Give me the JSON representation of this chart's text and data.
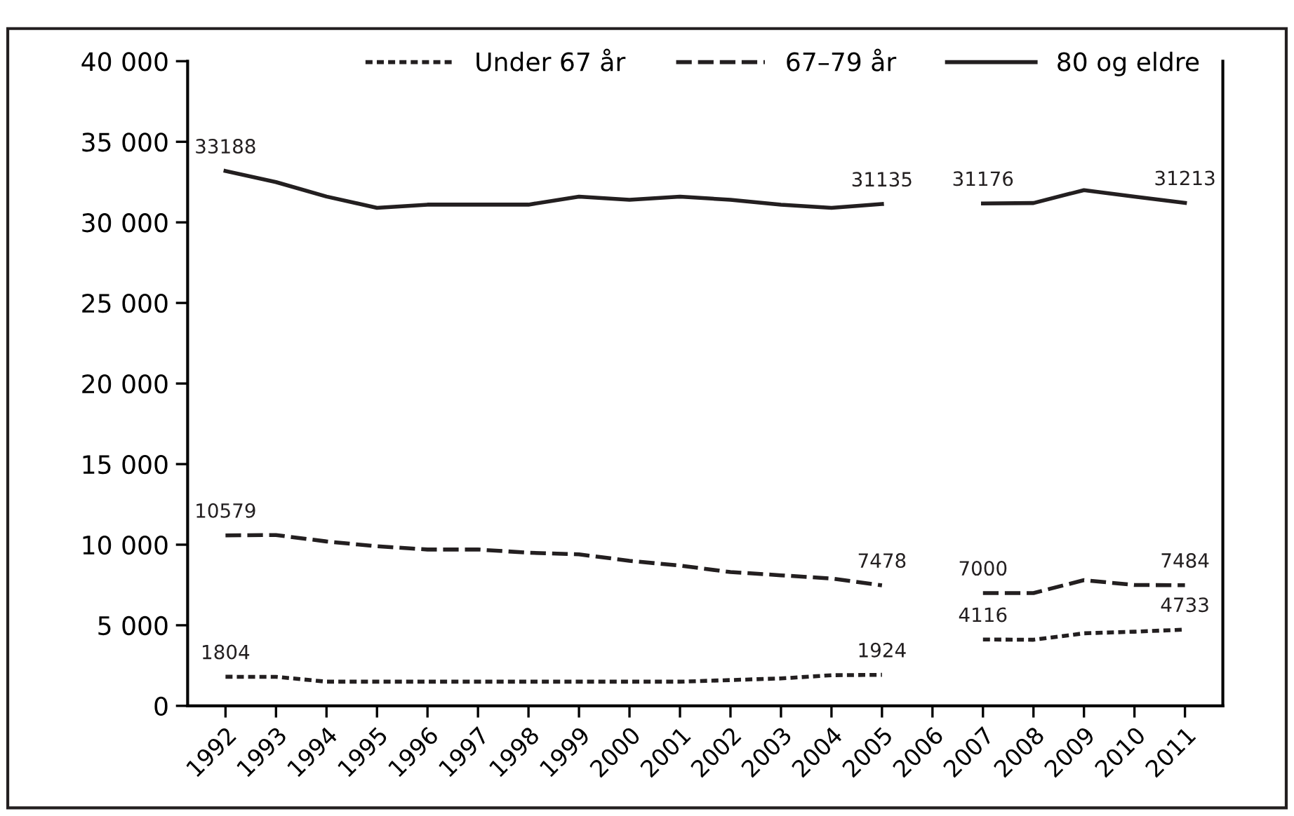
{
  "chart_data": {
    "type": "line",
    "categories": [
      "1992",
      "1993",
      "1994",
      "1995",
      "1996",
      "1997",
      "1998",
      "1999",
      "2000",
      "2001",
      "2002",
      "2003",
      "2004",
      "2005",
      "2006",
      "2007",
      "2008",
      "2009",
      "2010",
      "2011"
    ],
    "series": [
      {
        "name": "Under 67 år",
        "color": "#231f20",
        "line_style": "dotted",
        "values": [
          1804,
          1800,
          1500,
          1500,
          1500,
          1500,
          1500,
          1500,
          1500,
          1500,
          1600,
          1700,
          1900,
          1924,
          null,
          4116,
          4100,
          4500,
          4600,
          4733
        ],
        "value_labels": [
          "1804",
          null,
          null,
          null,
          null,
          null,
          null,
          null,
          null,
          null,
          null,
          null,
          null,
          "1924",
          null,
          "4116",
          null,
          null,
          null,
          "4733"
        ]
      },
      {
        "name": "67–79 år",
        "color": "#231f20",
        "line_style": "dashed",
        "values": [
          10579,
          10600,
          10200,
          9900,
          9700,
          9700,
          9500,
          9400,
          9000,
          8700,
          8300,
          8100,
          7900,
          7478,
          null,
          7000,
          7000,
          7800,
          7500,
          7484
        ],
        "value_labels": [
          "10579",
          null,
          null,
          null,
          null,
          null,
          null,
          null,
          null,
          null,
          null,
          null,
          null,
          "7478",
          null,
          "7000",
          null,
          null,
          null,
          "7484"
        ]
      },
      {
        "name": "80 og eldre",
        "color": "#231f20",
        "line_style": "solid",
        "values": [
          33188,
          32500,
          31600,
          30900,
          31100,
          31100,
          31100,
          31600,
          31400,
          31600,
          31400,
          31100,
          30900,
          31135,
          null,
          31176,
          31200,
          32000,
          31600,
          31213
        ],
        "value_labels": [
          "33188",
          null,
          null,
          null,
          null,
          null,
          null,
          null,
          null,
          null,
          null,
          null,
          null,
          "31135",
          null,
          "31176",
          null,
          null,
          null,
          "31213"
        ]
      }
    ],
    "ylim": [
      0,
      40000
    ],
    "yticks": [
      {
        "value": 0,
        "label": "0"
      },
      {
        "value": 5000,
        "label": "5 000"
      },
      {
        "value": 10000,
        "label": "10 000"
      },
      {
        "value": 15000,
        "label": "15 000"
      },
      {
        "value": 20000,
        "label": "20 000"
      },
      {
        "value": 25000,
        "label": "25 000"
      },
      {
        "value": 30000,
        "label": "30 000"
      },
      {
        "value": 35000,
        "label": "35 000"
      },
      {
        "value": 40000,
        "label": "40 000"
      }
    ],
    "grid": false,
    "legend": "top right",
    "marker": "none"
  }
}
